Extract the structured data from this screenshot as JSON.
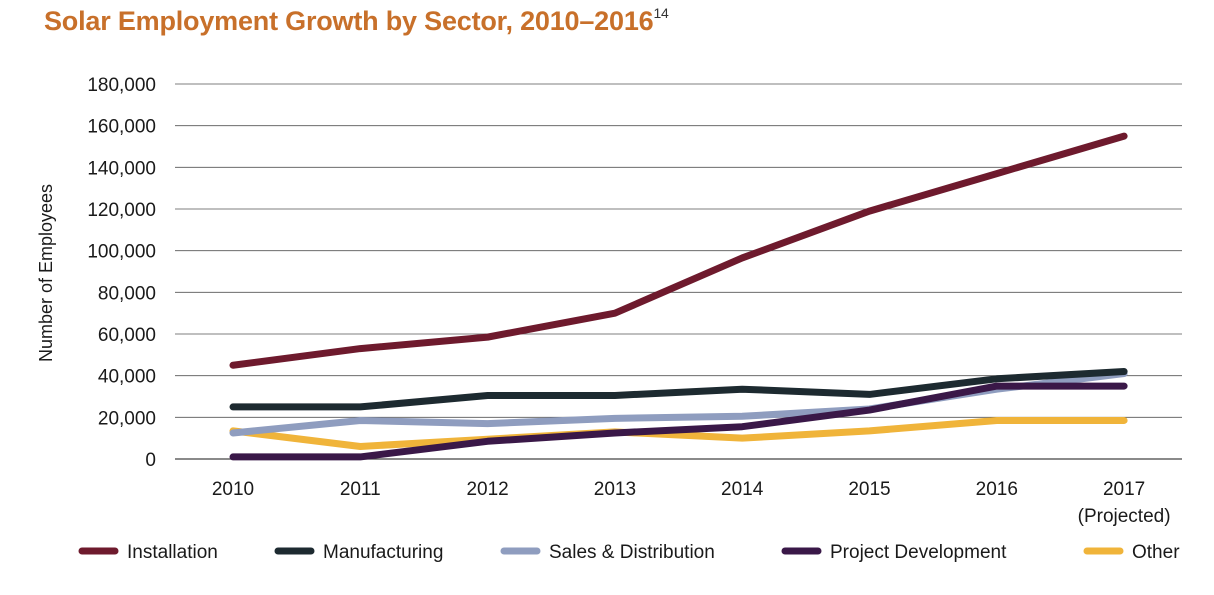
{
  "chart_data": {
    "type": "line",
    "title": "Solar Employment Growth by Sector, 2010–2016",
    "title_footnote": "14",
    "xlabel": "",
    "ylabel": "Number of Employees",
    "categories": [
      "2010",
      "2011",
      "2012",
      "2013",
      "2014",
      "2015",
      "2016",
      "2017"
    ],
    "category_sublabels": [
      "",
      "",
      "",
      "",
      "",
      "",
      "",
      "(Projected)"
    ],
    "ylim": [
      0,
      180000
    ],
    "yticks": [
      0,
      20000,
      40000,
      60000,
      80000,
      100000,
      120000,
      140000,
      160000,
      180000
    ],
    "ytick_labels": [
      "0",
      "20,000",
      "40,000",
      "60,000",
      "80,000",
      "100,000",
      "120,000",
      "140,000",
      "160,000",
      "180,000"
    ],
    "grid": true,
    "legend_position": "bottom",
    "series": [
      {
        "name": "Installation",
        "color": "#6e1a2d",
        "values": [
          45000,
          53000,
          58500,
          70000,
          96500,
          119000,
          137000,
          155000
        ]
      },
      {
        "name": "Manufacturing",
        "color": "#1d2a30",
        "values": [
          25000,
          25000,
          30500,
          30500,
          33500,
          31000,
          38500,
          42000
        ]
      },
      {
        "name": "Sales & Distribution",
        "color": "#8f9dbf",
        "values": [
          12500,
          18500,
          17000,
          19500,
          20500,
          24000,
          33500,
          41000
        ]
      },
      {
        "name": "Project Development",
        "color": "#3a1848",
        "values": [
          1000,
          1000,
          8500,
          12500,
          15500,
          23500,
          35000,
          35000
        ]
      },
      {
        "name": "Other",
        "color": "#f0b43a",
        "values": [
          13500,
          6000,
          9500,
          13000,
          10000,
          13500,
          18500,
          18500
        ]
      }
    ]
  }
}
